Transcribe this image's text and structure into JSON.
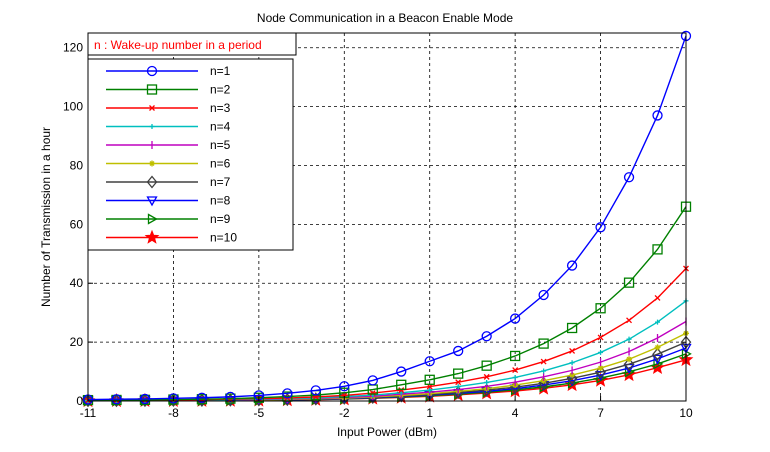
{
  "chart_data": {
    "type": "line",
    "title": "Node Communication in a Beacon Enable Mode",
    "xlabel": "Input Power (dBm)",
    "ylabel": "Number of Transmission  in a hour",
    "xlim": [
      -11,
      10
    ],
    "ylim": [
      0,
      125
    ],
    "xticks": [
      -11,
      -8,
      -5,
      -2,
      1,
      4,
      7,
      10
    ],
    "yticks": [
      0,
      20,
      40,
      60,
      80,
      100,
      120
    ],
    "grid": true,
    "legend_position": "top-left",
    "annotation": "n : Wake-up number in a period",
    "x": [
      -11,
      -10,
      -9,
      -8,
      -7,
      -6,
      -5,
      -4,
      -3,
      -2,
      -1,
      0,
      1,
      2,
      3,
      4,
      5,
      6,
      7,
      8,
      9,
      10
    ],
    "series": [
      {
        "name": "n=1",
        "color": "#0000ff",
        "marker": "circle",
        "values": [
          0.5,
          0.6,
          0.7,
          0.9,
          1.1,
          1.4,
          1.9,
          2.6,
          3.6,
          5.0,
          7.0,
          10.0,
          13.5,
          17.0,
          22.0,
          28.0,
          36.0,
          46.0,
          59.0,
          76.0,
          97.0,
          124.0
        ]
      },
      {
        "name": "n=2",
        "color": "#008000",
        "marker": "square",
        "values": [
          0.3,
          0.35,
          0.4,
          0.5,
          0.6,
          0.8,
          1.1,
          1.5,
          2.0,
          2.8,
          3.9,
          5.5,
          7.2,
          9.3,
          12.0,
          15.3,
          19.5,
          24.8,
          31.5,
          40.2,
          51.5,
          66.0
        ]
      },
      {
        "name": "n=3",
        "color": "#ff0000",
        "marker": "x",
        "values": [
          0.2,
          0.25,
          0.3,
          0.35,
          0.45,
          0.6,
          0.8,
          1.0,
          1.4,
          1.9,
          2.7,
          3.7,
          4.9,
          6.4,
          8.2,
          10.5,
          13.4,
          17.0,
          21.6,
          27.4,
          35.0,
          45.0
        ]
      },
      {
        "name": "n=4",
        "color": "#00bfbf",
        "marker": "plus",
        "values": [
          0.15,
          0.2,
          0.22,
          0.28,
          0.35,
          0.45,
          0.6,
          0.8,
          1.1,
          1.5,
          2.0,
          2.8,
          3.7,
          4.9,
          6.3,
          8.0,
          10.2,
          13.0,
          16.5,
          21.0,
          26.8,
          34.0
        ]
      },
      {
        "name": "n=5",
        "color": "#bf00bf",
        "marker": "vbar",
        "values": [
          0.12,
          0.15,
          0.18,
          0.22,
          0.28,
          0.36,
          0.48,
          0.65,
          0.9,
          1.2,
          1.6,
          2.3,
          3.0,
          3.9,
          5.0,
          6.4,
          8.2,
          10.4,
          13.2,
          16.8,
          21.4,
          27.0
        ]
      },
      {
        "name": "n=6",
        "color": "#bfbf00",
        "marker": "star4",
        "values": [
          0.1,
          0.13,
          0.15,
          0.18,
          0.23,
          0.3,
          0.4,
          0.54,
          0.75,
          1.0,
          1.4,
          1.9,
          2.5,
          3.3,
          4.2,
          5.4,
          6.9,
          8.8,
          11.2,
          14.2,
          18.2,
          23.0
        ]
      },
      {
        "name": "n=7",
        "color": "#404040",
        "marker": "diamond",
        "values": [
          0.09,
          0.11,
          0.13,
          0.16,
          0.2,
          0.26,
          0.35,
          0.47,
          0.65,
          0.9,
          1.2,
          1.7,
          2.2,
          2.9,
          3.7,
          4.7,
          6.0,
          7.7,
          9.8,
          12.5,
          15.9,
          20.0
        ]
      },
      {
        "name": "n=8",
        "color": "#0000ff",
        "marker": "triangle-down",
        "values": [
          0.08,
          0.1,
          0.12,
          0.14,
          0.18,
          0.23,
          0.31,
          0.42,
          0.58,
          0.8,
          1.1,
          1.5,
          2.0,
          2.6,
          3.3,
          4.2,
          5.4,
          6.9,
          8.8,
          11.2,
          14.3,
          18.0
        ]
      },
      {
        "name": "n=9",
        "color": "#008000",
        "marker": "triangle-right",
        "values": [
          0.07,
          0.09,
          0.11,
          0.13,
          0.16,
          0.21,
          0.28,
          0.38,
          0.52,
          0.72,
          1.0,
          1.35,
          1.8,
          2.3,
          3.0,
          3.8,
          4.8,
          6.1,
          7.8,
          9.9,
          12.6,
          16.0
        ]
      },
      {
        "name": "n=10",
        "color": "#ff0000",
        "marker": "star",
        "values": [
          0.06,
          0.08,
          0.1,
          0.12,
          0.15,
          0.19,
          0.25,
          0.34,
          0.47,
          0.65,
          0.9,
          1.2,
          1.6,
          2.1,
          2.7,
          3.4,
          4.3,
          5.5,
          7.0,
          8.9,
          11.3,
          14.0
        ]
      }
    ]
  }
}
